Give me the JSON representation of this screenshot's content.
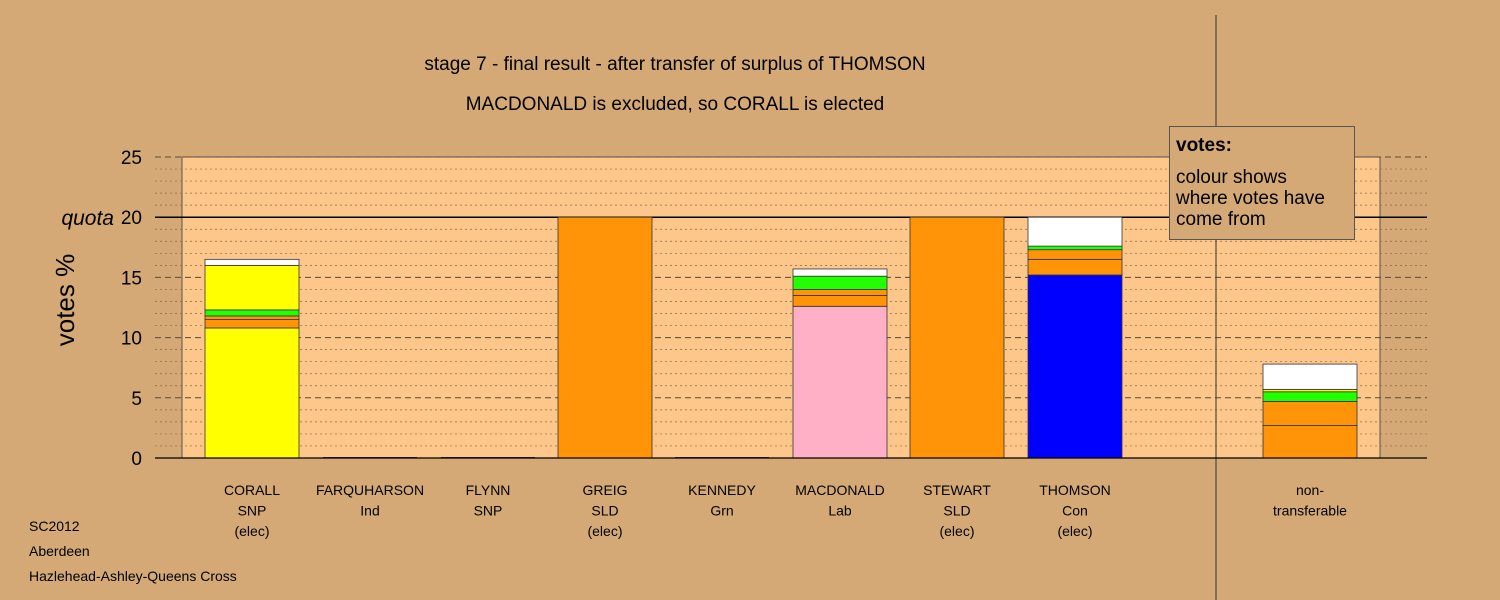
{
  "title": "stage 7 - final result - after transfer of surplus of THOMSON",
  "subtitle": "MACDONALD is excluded, so CORALL is elected",
  "legend": {
    "title": "votes:",
    "text": "colour shows where votes have come from"
  },
  "footer": [
    "SC2012",
    "Aberdeen",
    "Hazlehead-Ashley-Queens Cross"
  ],
  "chart_data": {
    "type": "bar",
    "stacked": true,
    "ylabel": "votes %",
    "ylim": [
      0,
      25
    ],
    "yticks": [
      0,
      5,
      10,
      15,
      20,
      25
    ],
    "quota": {
      "label": "quota",
      "value": 20
    },
    "grid": true,
    "colors": {
      "SNP": "#ffff00",
      "SLD": "#ff9408",
      "Con": "#0000ff",
      "Lab": "#ffb0c6",
      "Grn": "#22ff00",
      "Ind": "#ffffff",
      "Other": "#ffffff"
    },
    "categories": [
      {
        "lines": [
          "CORALL",
          "SNP",
          "(elec)"
        ],
        "segments": [
          [
            "SNP",
            10.8
          ],
          [
            "SLD",
            0.7
          ],
          [
            "SLD",
            0.3
          ],
          [
            "Grn",
            0.5
          ],
          [
            "SNP",
            3.7
          ],
          [
            "Other",
            0.5
          ]
        ]
      },
      {
        "lines": [
          "FARQUHARSON",
          "Ind"
        ],
        "segments": []
      },
      {
        "lines": [
          "FLYNN",
          "SNP"
        ],
        "segments": []
      },
      {
        "lines": [
          "GREIG",
          "SLD",
          "(elec)"
        ],
        "segments": [
          [
            "SLD",
            20.0
          ]
        ]
      },
      {
        "lines": [
          "KENNEDY",
          "Grn"
        ],
        "segments": []
      },
      {
        "lines": [
          "MACDONALD",
          "Lab"
        ],
        "segments": [
          [
            "Lab",
            12.6
          ],
          [
            "SLD",
            0.9
          ],
          [
            "SLD",
            0.5
          ],
          [
            "Grn",
            1.1
          ],
          [
            "Other",
            0.6
          ]
        ]
      },
      {
        "lines": [
          "STEWART",
          "SLD",
          "(elec)"
        ],
        "segments": [
          [
            "SLD",
            20.0
          ]
        ]
      },
      {
        "lines": [
          "THOMSON",
          "Con",
          "(elec)"
        ],
        "segments": [
          [
            "Con",
            15.2
          ],
          [
            "SLD",
            1.3
          ],
          [
            "SLD",
            0.8
          ],
          [
            "Grn",
            0.3
          ],
          [
            "Other",
            2.4
          ]
        ]
      },
      {
        "lines": [
          "non-",
          "transferable"
        ],
        "segments": [
          [
            "SLD",
            2.7
          ],
          [
            "SLD",
            2.0
          ],
          [
            "Grn",
            0.8
          ],
          [
            "SNP",
            0.2
          ],
          [
            "Other",
            2.1
          ]
        ]
      }
    ]
  }
}
